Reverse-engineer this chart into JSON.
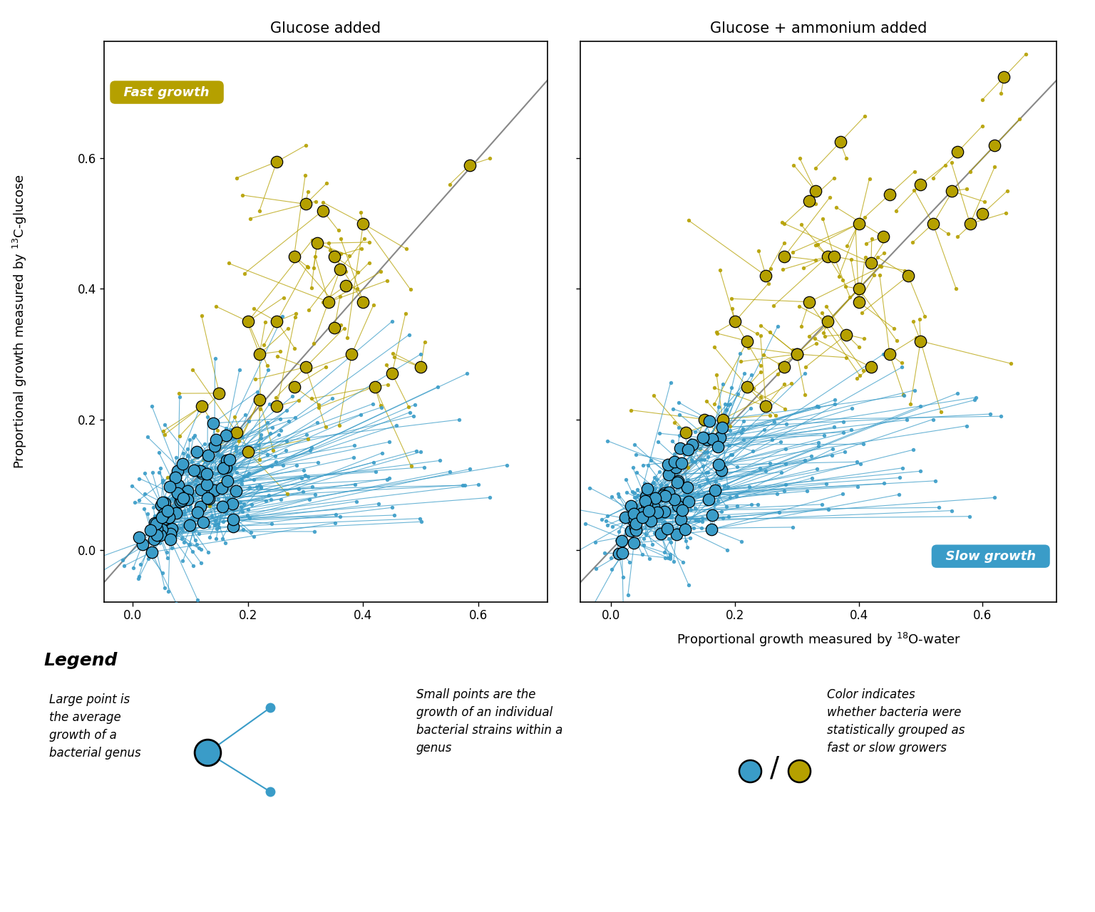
{
  "title_left": "Glucose added",
  "title_right": "Glucose + ammonium added",
  "xlabel_base": "Proportional growth measured by ",
  "xlabel_super": "18",
  "xlabel_post": "O-water",
  "ylabel_base": "Proportional growth measured by ",
  "ylabel_super": "13",
  "ylabel_post": "C-glucose",
  "xlim": [
    -0.05,
    0.72
  ],
  "ylim": [
    -0.08,
    0.78
  ],
  "xticks": [
    0.0,
    0.2,
    0.4,
    0.6
  ],
  "yticks": [
    0.0,
    0.2,
    0.4,
    0.6
  ],
  "fast_color": "#B5A000",
  "slow_color": "#3A9CC8",
  "fast_label": "Fast growth",
  "slow_label": "Slow growth",
  "legend_title": "Legend",
  "legend_text1": "Large point is\nthe average\ngrowth of a\nbacterial genus",
  "legend_text2": "Small points are the\ngrowth of an individual\nbacterial strains within a\ngenus",
  "legend_text3": "Color indicates\nwhether bacteria were\nstatistically grouped as\nfast or slow growers"
}
